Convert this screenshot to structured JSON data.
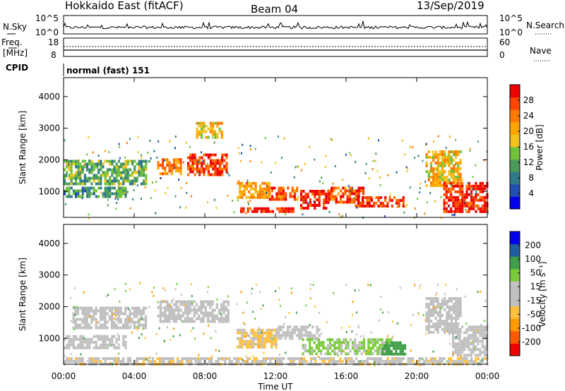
{
  "header": {
    "station": "Hokkaido East (fitACF)",
    "beam": "Beam 04",
    "date": "13/Sep/2019"
  },
  "status_panel": {
    "left_labels": {
      "nsky": "N.Sky",
      "freq": "Freq.",
      "freq_unit": "[MHz]",
      "cpid": "CPID"
    },
    "right_labels": {
      "nsearch": "N.Search",
      "nave": "Nave"
    },
    "noise_axis_ticks": [
      "10^5",
      "10^0"
    ],
    "freq_axis_ticks": [
      "18",
      "8"
    ],
    "nave_axis_ticks": [
      "60",
      "0"
    ],
    "cpid_text": "normal (fast) 151"
  },
  "colors": {
    "power_scale": [
      "#0000ee",
      "#1f4fb0",
      "#2f7a8a",
      "#4a9a5a",
      "#6fc23a",
      "#f2c21a",
      "#ffa500",
      "#ff7a00",
      "#ff4400",
      "#ee0000"
    ],
    "velocity_scale": [
      "#ee0000",
      "#ff5a00",
      "#ff9a00",
      "#ffc040",
      "#c0c0c0",
      "#c0c0c0",
      "#7acc3a",
      "#3f9f4a",
      "#1f5fa0",
      "#0000ee"
    ],
    "ground_scatter": "#c0c0c0"
  },
  "chart_data": [
    {
      "type": "heatmap",
      "name": "Power",
      "ylabel": "Slant Range [km]",
      "yticks": [
        "1000",
        "2000",
        "3000",
        "4000"
      ],
      "ylim": [
        180,
        4600
      ],
      "colorbar_label": "Power [dB]",
      "colorbar_ticks": [
        "4",
        "8",
        "12",
        "16",
        "20",
        "24",
        "28"
      ],
      "colorbar_range": [
        0,
        30
      ],
      "scatter_regions": [
        {
          "t0": 0.0,
          "t1": 4.7,
          "r0": 1250,
          "r1": 2000,
          "level": 12
        },
        {
          "t0": 0.0,
          "t1": 3.5,
          "r0": 800,
          "r1": 1150,
          "level": 10
        },
        {
          "t0": 5.3,
          "t1": 6.7,
          "r0": 1600,
          "r1": 2050,
          "level": 22
        },
        {
          "t0": 7.0,
          "t1": 9.2,
          "r0": 1500,
          "r1": 2200,
          "level": 26
        },
        {
          "t0": 7.5,
          "t1": 9.0,
          "r0": 2700,
          "r1": 3200,
          "level": 18
        },
        {
          "t0": 9.8,
          "t1": 11.7,
          "r0": 800,
          "r1": 1300,
          "level": 20
        },
        {
          "t0": 11.5,
          "t1": 13.2,
          "r0": 750,
          "r1": 1150,
          "level": 24
        },
        {
          "t0": 13.4,
          "t1": 15.0,
          "r0": 500,
          "r1": 1050,
          "level": 28
        },
        {
          "t0": 15.0,
          "t1": 17.0,
          "r0": 700,
          "r1": 1150,
          "level": 24
        },
        {
          "t0": 16.5,
          "t1": 19.2,
          "r0": 500,
          "r1": 850,
          "level": 26
        },
        {
          "t0": 10.0,
          "t1": 13.0,
          "r0": 350,
          "r1": 500,
          "level": 28
        },
        {
          "t0": 20.5,
          "t1": 22.5,
          "r0": 1200,
          "r1": 2300,
          "level": 18
        },
        {
          "t0": 21.5,
          "t1": 24.0,
          "r0": 350,
          "r1": 1300,
          "level": 28
        }
      ]
    },
    {
      "type": "heatmap",
      "name": "Velocity",
      "ylabel": "Slant Range [km]",
      "yticks": [
        "1000",
        "2000",
        "3000",
        "4000"
      ],
      "ylim": [
        180,
        4600
      ],
      "xlabel": "Time UT",
      "xticks": [
        "00:00",
        "04:00",
        "08:00",
        "12:00",
        "16:00",
        "20:00",
        "00:00"
      ],
      "xlim": [
        0,
        24
      ],
      "colorbar_label": "Velocity [m s⁻¹]",
      "colorbar_ticks": [
        "-200",
        "-100",
        "-50",
        "-15",
        "15",
        "50",
        "100",
        "200"
      ],
      "colorbar_range": [
        -250,
        250
      ],
      "scatter_regions": [
        {
          "t0": 0.5,
          "t1": 4.7,
          "r0": 1300,
          "r1": 2000,
          "vel": 0
        },
        {
          "t0": 0.0,
          "t1": 3.5,
          "r0": 700,
          "r1": 1100,
          "vel": 0
        },
        {
          "t0": 5.3,
          "t1": 9.3,
          "r0": 1500,
          "r1": 2200,
          "vel": 0
        },
        {
          "t0": 9.8,
          "t1": 12.0,
          "r0": 700,
          "r1": 1300,
          "vel": -60
        },
        {
          "t0": 12.0,
          "t1": 14.5,
          "r0": 1000,
          "r1": 1400,
          "vel": 30
        },
        {
          "t0": 13.5,
          "t1": 18.5,
          "r0": 550,
          "r1": 1000,
          "vel": 60
        },
        {
          "t0": 18.0,
          "t1": 19.3,
          "r0": 500,
          "r1": 900,
          "vel": 120
        },
        {
          "t0": 20.5,
          "t1": 22.5,
          "r0": 1200,
          "r1": 2300,
          "vel": 0
        },
        {
          "t0": 22.0,
          "t1": 24.0,
          "r0": 500,
          "r1": 1400,
          "vel": 0
        },
        {
          "t0": 0.0,
          "t1": 24.0,
          "r0": 200,
          "r1": 400,
          "vel": -40
        }
      ]
    }
  ]
}
